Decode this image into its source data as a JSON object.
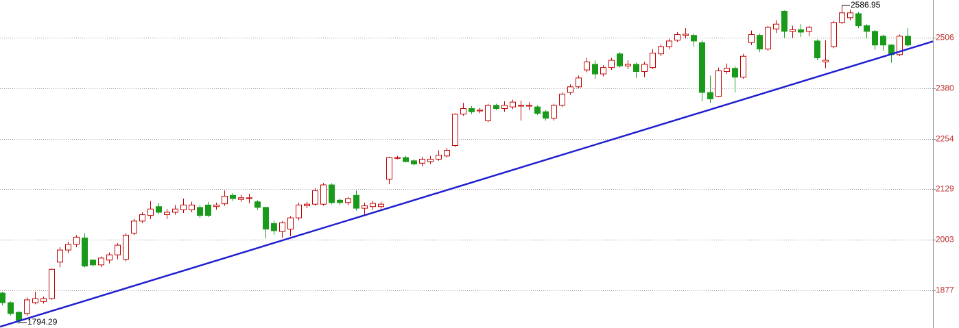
{
  "chart_data": {
    "type": "candlestick",
    "categories": [
      null,
      null,
      null,
      null,
      null,
      null,
      null,
      null,
      null,
      null,
      null,
      null,
      null,
      null,
      null,
      null,
      null,
      null,
      null,
      null,
      null,
      null,
      null,
      null,
      null,
      null,
      null,
      null,
      null,
      null,
      null,
      null,
      null,
      null,
      null,
      null,
      null,
      null,
      null,
      null,
      null,
      null,
      null,
      null,
      null,
      null,
      null,
      null,
      null,
      null,
      null,
      null,
      null,
      null,
      null,
      null,
      null,
      null,
      null,
      null,
      null,
      null,
      null,
      null,
      null,
      null,
      null,
      null,
      null,
      null,
      null,
      null,
      null,
      null,
      null,
      null,
      null,
      null,
      null,
      null,
      null,
      null,
      null,
      null,
      null,
      null,
      null,
      null,
      null,
      null,
      null,
      null,
      null,
      null,
      null,
      null,
      null,
      null,
      null,
      null,
      null,
      null,
      null,
      null,
      null,
      null,
      null,
      null,
      null,
      null,
      null
    ],
    "open": [
      1871,
      1847,
      1823,
      1820,
      1847,
      1850,
      1857,
      1948,
      1978,
      1992,
      2008,
      1953,
      1941,
      1953,
      1966,
      1955,
      2020,
      2050,
      2064,
      2086,
      2066,
      2072,
      2078,
      2078,
      2084,
      2090,
      2086,
      2093,
      2114,
      2104,
      2106,
      2098,
      2084,
      2044,
      2024,
      2030,
      2058,
      2088,
      2092,
      2092,
      2140,
      2102,
      2096,
      2114,
      2082,
      2086,
      2086,
      2154,
      2206,
      2208,
      2200,
      2194,
      2198,
      2204,
      2212,
      2238,
      2316,
      2330,
      2324,
      2300,
      2338,
      2330,
      2334,
      2336,
      2336,
      2334,
      2322,
      2306,
      2338,
      2370,
      2384,
      2426,
      2440,
      2416,
      2432,
      2466,
      2436,
      2440,
      2422,
      2432,
      2466,
      2484,
      2500,
      2512,
      2512,
      2494,
      2370,
      2360,
      2422,
      2430,
      2408,
      2494,
      2512,
      2478,
      2528,
      2572,
      2522,
      2526,
      2522,
      2498,
      2446,
      2484,
      2544,
      2556,
      2566,
      2536,
      2522,
      2510,
      2488,
      2464,
      2510
    ],
    "high": [
      1874,
      1850,
      1826,
      1860,
      1874,
      1862,
      1932,
      1985,
      1998,
      2015,
      2020,
      1955,
      1962,
      1972,
      1995,
      2020,
      2056,
      2072,
      2100,
      2095,
      2080,
      2090,
      2106,
      2098,
      2090,
      2098,
      2096,
      2126,
      2120,
      2116,
      2118,
      2102,
      2086,
      2050,
      2050,
      2062,
      2096,
      2098,
      2132,
      2145,
      2144,
      2106,
      2110,
      2126,
      2096,
      2100,
      2098,
      2210,
      2212,
      2212,
      2204,
      2210,
      2212,
      2226,
      2232,
      2318,
      2344,
      2336,
      2332,
      2342,
      2342,
      2348,
      2352,
      2350,
      2346,
      2338,
      2326,
      2342,
      2370,
      2390,
      2412,
      2456,
      2450,
      2438,
      2456,
      2470,
      2450,
      2444,
      2446,
      2478,
      2490,
      2504,
      2520,
      2530,
      2516,
      2500,
      2412,
      2432,
      2442,
      2436,
      2466,
      2524,
      2516,
      2536,
      2550,
      2574,
      2536,
      2540,
      2536,
      2502,
      2500,
      2548,
      2586.95,
      2576,
      2570,
      2540,
      2526,
      2514,
      2490,
      2514,
      2530
    ],
    "low": [
      1840,
      1815,
      1794.29,
      1815,
      1843,
      1845,
      1854,
      1935,
      1970,
      1985,
      1935,
      1937,
      1935,
      1945,
      1955,
      1950,
      2015,
      2045,
      2055,
      2068,
      2055,
      2066,
      2070,
      2072,
      2058,
      2060,
      2078,
      2088,
      2100,
      2098,
      2094,
      2078,
      2007,
      2016,
      2008,
      2012,
      2052,
      2082,
      2088,
      2088,
      2092,
      2090,
      2090,
      2076,
      2064,
      2078,
      2080,
      2142,
      2204,
      2196,
      2188,
      2186,
      2192,
      2200,
      2208,
      2234,
      2312,
      2316,
      2318,
      2296,
      2326,
      2322,
      2328,
      2300,
      2326,
      2314,
      2300,
      2300,
      2334,
      2364,
      2380,
      2420,
      2404,
      2410,
      2426,
      2432,
      2428,
      2406,
      2408,
      2428,
      2460,
      2478,
      2496,
      2504,
      2484,
      2348,
      2344,
      2358,
      2416,
      2370,
      2404,
      2488,
      2470,
      2474,
      2518,
      2506,
      2506,
      2508,
      2510,
      2450,
      2430,
      2480,
      2540,
      2550,
      2530,
      2504,
      2476,
      2474,
      2444,
      2460,
      2484
    ],
    "close": [
      1847,
      1820,
      1803,
      1854,
      1857,
      1857,
      1930,
      1978,
      1992,
      2010,
      1938,
      1941,
      1958,
      1966,
      1990,
      2015,
      2050,
      2066,
      2080,
      2072,
      2072,
      2080,
      2090,
      2090,
      2064,
      2064,
      2090,
      2112,
      2106,
      2108,
      2108,
      2084,
      2030,
      2026,
      2046,
      2058,
      2090,
      2092,
      2126,
      2140,
      2096,
      2096,
      2106,
      2082,
      2088,
      2094,
      2092,
      2208,
      2208,
      2198,
      2192,
      2204,
      2204,
      2214,
      2226,
      2316,
      2330,
      2322,
      2326,
      2338,
      2330,
      2338,
      2346,
      2338,
      2338,
      2318,
      2306,
      2338,
      2366,
      2384,
      2406,
      2446,
      2416,
      2432,
      2450,
      2436,
      2440,
      2422,
      2440,
      2468,
      2484,
      2498,
      2514,
      2515,
      2498,
      2370,
      2354,
      2424,
      2430,
      2408,
      2460,
      2514,
      2478,
      2532,
      2540,
      2522,
      2526,
      2520,
      2532,
      2456,
      2450,
      2544,
      2568,
      2568,
      2536,
      2522,
      2488,
      2488,
      2464,
      2510,
      2488
    ],
    "up_color": "#c00000",
    "down_color": "#1a9a1a",
    "annotations": [
      {
        "value": 2586.95
      },
      {
        "value": 1794.29
      }
    ],
    "trendline": [
      1787,
      2497
    ],
    "trendline_color": "#1f1fd0",
    "ylim": [
      1784,
      2600
    ],
    "yticks": [
      1877,
      2003,
      2129,
      2254,
      2380,
      2506
    ],
    "grid": true,
    "axis_label_color": "#c03030"
  }
}
